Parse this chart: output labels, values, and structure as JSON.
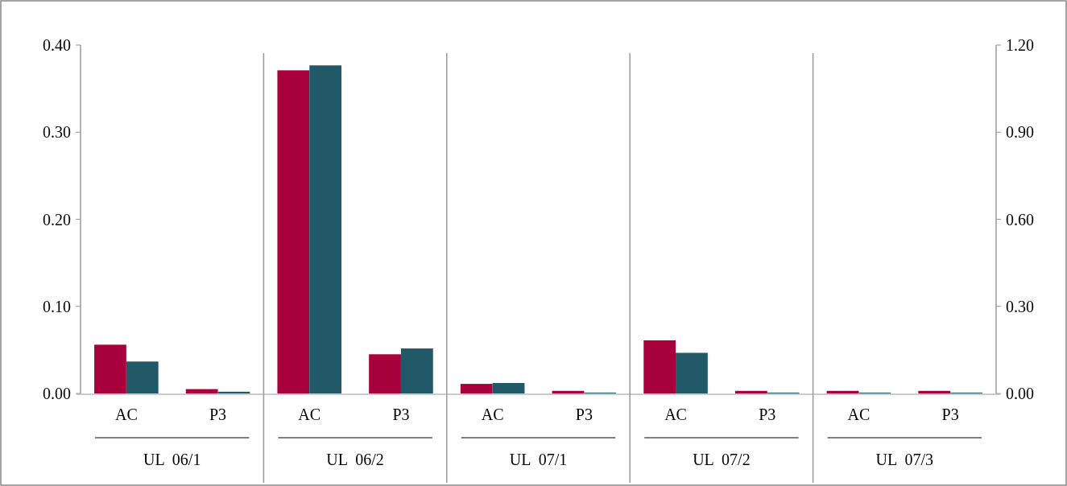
{
  "chart_data": {
    "type": "bar",
    "categories": [
      "AC",
      "P3",
      "AC",
      "P3",
      "AC",
      "P3",
      "AC",
      "P3",
      "AC",
      "P3"
    ],
    "annotations": [
      "UL  06/1",
      "UL  06/2",
      "UL  07/1",
      "UL  07/2",
      "UL  07/3"
    ],
    "series": [
      {
        "color": "#a8003c",
        "values": [
          0.056,
          0.005,
          0.371,
          0.045,
          0.011,
          0.003,
          0.061,
          0.003,
          0.003,
          0.003
        ]
      },
      {
        "color": "#215968",
        "axis": "y2",
        "values": [
          0.11,
          0.006,
          1.13,
          0.155,
          0.036,
          0.003,
          0.14,
          0.003,
          0.003,
          0.003
        ]
      }
    ],
    "ylim": [
      0,
      0.4
    ],
    "yticks": [
      {
        "value": 0,
        "label": "0.00"
      },
      {
        "value": 0.1,
        "label": "0.10"
      },
      {
        "value": 0.2,
        "label": "0.20"
      },
      {
        "value": 0.3,
        "label": "0.30"
      },
      {
        "value": 0.4,
        "label": "0.40"
      }
    ],
    "y2lim": [
      0,
      1.2
    ],
    "y2ticks": [
      {
        "value": 0,
        "label": "0.00"
      },
      {
        "value": 0.3,
        "label": "0.30"
      },
      {
        "value": 0.6,
        "label": "0.60"
      },
      {
        "value": 0.9,
        "label": "0.90"
      },
      {
        "value": 1.2,
        "label": "1.20"
      }
    ],
    "grid": false
  }
}
